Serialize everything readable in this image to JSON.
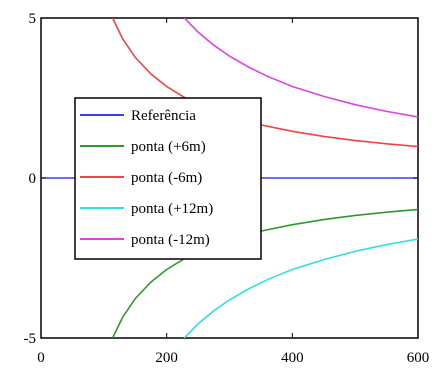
{
  "chart_data": {
    "type": "line",
    "xlim": [
      0,
      600
    ],
    "ylim": [
      -5,
      5
    ],
    "x_ticks": [
      {
        "value": 0,
        "label": "0"
      },
      {
        "value": 200,
        "label": "200"
      },
      {
        "value": 400,
        "label": "400"
      },
      {
        "value": 600,
        "label": "600"
      }
    ],
    "y_ticks": [
      {
        "value": 5,
        "label": "5"
      },
      {
        "value": 0,
        "label": "0"
      },
      {
        "value": -5,
        "label": "-5"
      }
    ],
    "grid": false,
    "legend_position": "center-left",
    "series": [
      {
        "name": "Referência",
        "color": "#3f3fe8",
        "x": [
          0,
          600
        ],
        "y": [
          0,
          0
        ]
      },
      {
        "name": "ponta (+6m)",
        "color": "#2e9a2e",
        "x": [
          114,
          130,
          150,
          175,
          200,
          230,
          260,
          300,
          350,
          400,
          450,
          500,
          550,
          600
        ],
        "y": [
          -5.0,
          -4.35,
          -3.77,
          -3.25,
          -2.86,
          -2.5,
          -2.22,
          -1.93,
          -1.66,
          -1.46,
          -1.3,
          -1.17,
          -1.07,
          -0.98
        ]
      },
      {
        "name": "ponta (-6m)",
        "color": "#ee4444",
        "x": [
          114,
          130,
          150,
          175,
          200,
          230,
          260,
          300,
          350,
          400,
          450,
          500,
          550,
          600
        ],
        "y": [
          5.0,
          4.35,
          3.77,
          3.25,
          2.86,
          2.5,
          2.22,
          1.93,
          1.66,
          1.46,
          1.3,
          1.17,
          1.07,
          0.98
        ]
      },
      {
        "name": "ponta (+12m)",
        "color": "#33dede",
        "x": [
          228,
          250,
          275,
          300,
          330,
          360,
          400,
          450,
          500,
          550,
          600
        ],
        "y": [
          -5.0,
          -4.56,
          -4.15,
          -3.81,
          -3.47,
          -3.18,
          -2.86,
          -2.55,
          -2.29,
          -2.08,
          -1.91
        ]
      },
      {
        "name": "ponta (-12m)",
        "color": "#dd44dd",
        "x": [
          228,
          250,
          275,
          300,
          330,
          360,
          400,
          450,
          500,
          550,
          600
        ],
        "y": [
          5.0,
          4.56,
          4.15,
          3.81,
          3.47,
          3.18,
          2.86,
          2.55,
          2.29,
          2.08,
          1.91
        ]
      }
    ]
  }
}
